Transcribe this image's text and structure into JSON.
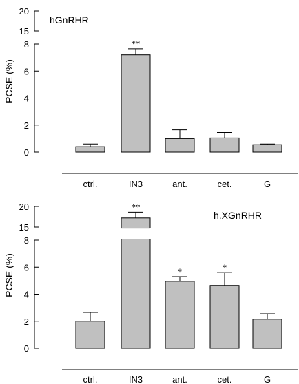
{
  "chart_data": [
    {
      "type": "bar",
      "label": "hGnRHR",
      "ylabel": "PCSE (%)",
      "categories": [
        "ctrl.",
        "IN3",
        "ant.",
        "cet.",
        "G"
      ],
      "values": [
        0.4,
        7.2,
        1.0,
        1.05,
        0.55
      ],
      "errors": [
        0.2,
        0.45,
        0.65,
        0.4,
        0.05
      ],
      "significance": [
        "",
        "**",
        "",
        "",
        ""
      ],
      "lower_axis": {
        "range": [
          0,
          8
        ],
        "ticks": [
          "0",
          "2",
          "4",
          "6",
          "8"
        ]
      },
      "upper_axis": {
        "range": [
          15,
          20
        ],
        "ticks": [
          "15",
          "20"
        ]
      },
      "broken_axis": true,
      "bar_color": "#c0c0c0"
    },
    {
      "type": "bar",
      "label": "h.XGnRHR",
      "ylabel": "PCSE (%)",
      "categories": [
        "ctrl.",
        "IN3",
        "ant.",
        "cet.",
        "G"
      ],
      "values": [
        2.0,
        17.2,
        4.95,
        4.65,
        2.15
      ],
      "errors": [
        0.65,
        1.4,
        0.35,
        0.95,
        0.4
      ],
      "significance": [
        "",
        "**",
        "*",
        "*",
        ""
      ],
      "lower_axis": {
        "range": [
          0,
          8
        ],
        "ticks": [
          "0",
          "2",
          "4",
          "6",
          "8"
        ]
      },
      "upper_axis": {
        "range": [
          15,
          20
        ],
        "ticks": [
          "15",
          "20"
        ]
      },
      "broken_axis": true,
      "bar_color": "#c0c0c0"
    }
  ]
}
